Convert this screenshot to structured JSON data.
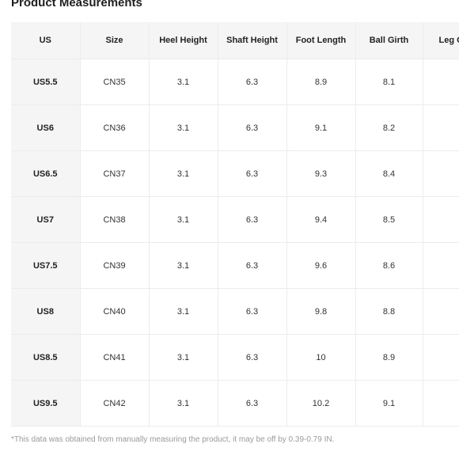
{
  "title": "Product Measurements",
  "columns": [
    "US",
    "Size",
    "Heel Height",
    "Shaft Height",
    "Foot Length",
    "Ball Girth",
    "Leg Circ"
  ],
  "rows": [
    {
      "us": "US5.5",
      "size": "CN35",
      "heel_height": "3.1",
      "shaft_height": "6.3",
      "foot_length": "8.9",
      "ball_girth": "8.1"
    },
    {
      "us": "US6",
      "size": "CN36",
      "heel_height": "3.1",
      "shaft_height": "6.3",
      "foot_length": "9.1",
      "ball_girth": "8.2"
    },
    {
      "us": "US6.5",
      "size": "CN37",
      "heel_height": "3.1",
      "shaft_height": "6.3",
      "foot_length": "9.3",
      "ball_girth": "8.4"
    },
    {
      "us": "US7",
      "size": "CN38",
      "heel_height": "3.1",
      "shaft_height": "6.3",
      "foot_length": "9.4",
      "ball_girth": "8.5"
    },
    {
      "us": "US7.5",
      "size": "CN39",
      "heel_height": "3.1",
      "shaft_height": "6.3",
      "foot_length": "9.6",
      "ball_girth": "8.6"
    },
    {
      "us": "US8",
      "size": "CN40",
      "heel_height": "3.1",
      "shaft_height": "6.3",
      "foot_length": "9.8",
      "ball_girth": "8.8"
    },
    {
      "us": "US8.5",
      "size": "CN41",
      "heel_height": "3.1",
      "shaft_height": "6.3",
      "foot_length": "10",
      "ball_girth": "8.9"
    },
    {
      "us": "US9.5",
      "size": "CN42",
      "heel_height": "3.1",
      "shaft_height": "6.3",
      "foot_length": "10.2",
      "ball_girth": "9.1"
    }
  ],
  "note": "*This data was obtained from manually measuring the product, it may be off by 0.39-0.79 IN."
}
